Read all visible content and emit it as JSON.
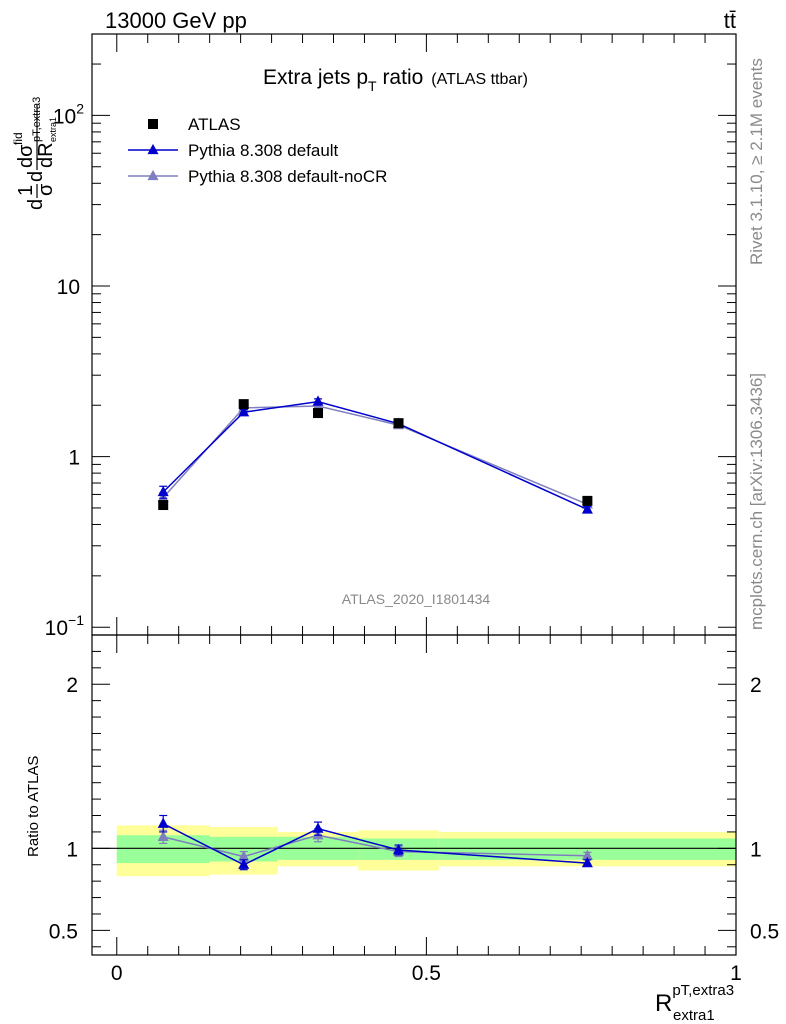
{
  "header": {
    "left": "13000 GeV pp",
    "right": "tt̄"
  },
  "side_text": {
    "rivet": "Rivet 3.1.10, ≥ 2.1M events",
    "mcplots": "mcplots.cern.ch [arXiv:1306.3436]"
  },
  "watermark": "ATLAS_2020_I1801434",
  "colors": {
    "data": "#000000",
    "default": "#0000cc",
    "nocr": "#7f7fbf",
    "band_inner": "#99ff99",
    "band_outer": "#ffff99"
  },
  "chart_data": [
    {
      "type": "line",
      "title": "Extra jets p_T ratio (ATLAS ttbar)",
      "title_main": "Extra jets p",
      "title_sub": "T",
      "title_tail": " ratio",
      "title_small": "(ATLAS ttbar)",
      "ylabel": "1/σ dσ^fid/dR^{pT,extra3}_{extra1}",
      "yscale": "log",
      "ylim": [
        0.09,
        300
      ],
      "xlim": [
        -0.04,
        1.0
      ],
      "yticks": [
        {
          "value": 0.1,
          "base": "10",
          "exp": "−1"
        },
        {
          "value": 1,
          "label": "1"
        },
        {
          "value": 10,
          "label": "10"
        },
        {
          "value": 100,
          "base": "10",
          "exp": "2"
        }
      ],
      "legend_position": "top-left",
      "series": [
        {
          "name": "ATLAS",
          "marker": "square",
          "x": [
            0.075,
            0.205,
            0.325,
            0.455,
            0.76
          ],
          "y": [
            0.52,
            2.03,
            1.8,
            1.57,
            0.55
          ]
        },
        {
          "name": "Pythia 8.308 default",
          "marker": "triangle",
          "x": [
            0.075,
            0.205,
            0.325,
            0.455,
            0.76
          ],
          "y": [
            0.62,
            1.82,
            2.1,
            1.56,
            0.49
          ],
          "yerr": [
            0.05,
            0.07,
            0.08,
            0.05,
            0.02
          ]
        },
        {
          "name": "Pythia 8.308 default-noCR",
          "marker": "triangle",
          "x": [
            0.075,
            0.205,
            0.325,
            0.455,
            0.76
          ],
          "y": [
            0.575,
            1.93,
            1.98,
            1.53,
            0.525
          ],
          "yerr": [
            0.04,
            0.06,
            0.07,
            0.05,
            0.02
          ]
        }
      ]
    },
    {
      "type": "line",
      "ylabel": "Ratio to ATLAS",
      "ylim": [
        0.35,
        2.3
      ],
      "xlim": [
        -0.04,
        1.0
      ],
      "xlabel_main": "R",
      "xlabel_sup": "pT,extra3",
      "xlabel_sub": "extra1",
      "yticks": [
        {
          "value": 0.5,
          "label": "0.5"
        },
        {
          "value": 1,
          "label": "1"
        },
        {
          "value": 2,
          "label": "2"
        }
      ],
      "xticks": [
        {
          "value": 0,
          "label": "0"
        },
        {
          "value": 0.5,
          "label": "0.5"
        },
        {
          "value": 1,
          "label": "1"
        }
      ],
      "bands": [
        {
          "x0": 0.0,
          "x1": 0.15,
          "inner": [
            0.91,
            1.08
          ],
          "outer": [
            0.83,
            1.14
          ]
        },
        {
          "x0": 0.15,
          "x1": 0.26,
          "inner": [
            0.92,
            1.07
          ],
          "outer": [
            0.84,
            1.13
          ]
        },
        {
          "x0": 0.26,
          "x1": 0.39,
          "inner": [
            0.93,
            1.07
          ],
          "outer": [
            0.89,
            1.1
          ]
        },
        {
          "x0": 0.39,
          "x1": 0.52,
          "inner": [
            0.93,
            1.06
          ],
          "outer": [
            0.865,
            1.11
          ]
        },
        {
          "x0": 0.52,
          "x1": 1.0,
          "inner": [
            0.93,
            1.06
          ],
          "outer": [
            0.89,
            1.1
          ]
        }
      ],
      "series": [
        {
          "name": "Pythia 8.308 default",
          "x": [
            0.075,
            0.205,
            0.325,
            0.455,
            0.76
          ],
          "y": [
            1.15,
            0.9,
            1.12,
            0.99,
            0.91
          ],
          "yerr": [
            0.05,
            0.03,
            0.04,
            0.03,
            0.02
          ]
        },
        {
          "name": "Pythia 8.308 default-noCR",
          "x": [
            0.075,
            0.205,
            0.325,
            0.455,
            0.76
          ],
          "y": [
            1.07,
            0.95,
            1.08,
            0.98,
            0.955
          ],
          "yerr": [
            0.04,
            0.03,
            0.04,
            0.03,
            0.02
          ]
        }
      ]
    }
  ]
}
